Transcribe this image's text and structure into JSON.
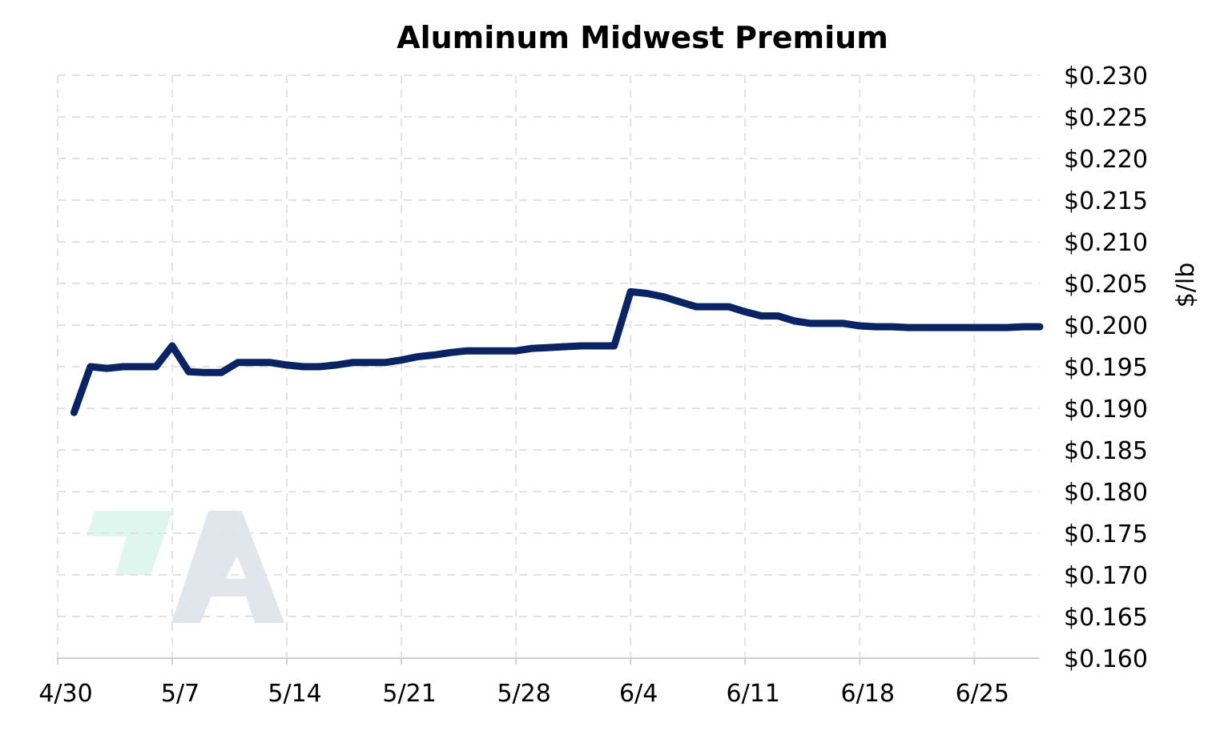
{
  "chart_data": {
    "type": "line",
    "title": "Aluminum Midwest Premium",
    "xlabel": "",
    "ylabel": "$/lb",
    "x_ticks": [
      "4/30",
      "5/7",
      "5/14",
      "5/21",
      "5/28",
      "6/4",
      "6/11",
      "6/18",
      "6/25"
    ],
    "y_ticks": [
      "$0.230",
      "$0.225",
      "$0.220",
      "$0.215",
      "$0.210",
      "$0.205",
      "$0.200",
      "$0.195",
      "$0.190",
      "$0.185",
      "$0.180",
      "$0.175",
      "$0.170",
      "$0.165",
      "$0.160"
    ],
    "ylim": [
      0.16,
      0.23
    ],
    "xlim": [
      "2024-04-30",
      "2024-06-29"
    ],
    "grid": true,
    "legend": "none",
    "line_color": "#0a2463",
    "watermark": "logo-mark",
    "series": [
      {
        "name": "",
        "x": [
          "2024-05-01",
          "2024-05-02",
          "2024-05-03",
          "2024-05-04",
          "2024-05-05",
          "2024-05-06",
          "2024-05-07",
          "2024-05-08",
          "2024-05-09",
          "2024-05-10",
          "2024-05-11",
          "2024-05-12",
          "2024-05-13",
          "2024-05-14",
          "2024-05-15",
          "2024-05-16",
          "2024-05-17",
          "2024-05-18",
          "2024-05-19",
          "2024-05-20",
          "2024-05-21",
          "2024-05-22",
          "2024-05-23",
          "2024-05-24",
          "2024-05-25",
          "2024-05-26",
          "2024-05-27",
          "2024-05-28",
          "2024-05-29",
          "2024-05-30",
          "2024-05-31",
          "2024-06-01",
          "2024-06-02",
          "2024-06-03",
          "2024-06-04",
          "2024-06-05",
          "2024-06-06",
          "2024-06-07",
          "2024-06-08",
          "2024-06-09",
          "2024-06-10",
          "2024-06-11",
          "2024-06-12",
          "2024-06-13",
          "2024-06-14",
          "2024-06-15",
          "2024-06-16",
          "2024-06-17",
          "2024-06-18",
          "2024-06-19",
          "2024-06-20",
          "2024-06-21",
          "2024-06-22",
          "2024-06-23",
          "2024-06-24",
          "2024-06-25",
          "2024-06-26",
          "2024-06-27",
          "2024-06-28",
          "2024-06-29"
        ],
        "values": [
          0.1895,
          0.195,
          0.1948,
          0.195,
          0.195,
          0.195,
          0.1975,
          0.1944,
          0.1943,
          0.1943,
          0.1955,
          0.1955,
          0.1955,
          0.1952,
          0.195,
          0.195,
          0.1952,
          0.1955,
          0.1955,
          0.1955,
          0.1958,
          0.1962,
          0.1964,
          0.1967,
          0.1969,
          0.1969,
          0.1969,
          0.1969,
          0.1972,
          0.1973,
          0.1974,
          0.1975,
          0.1975,
          0.1975,
          0.204,
          0.2038,
          0.2034,
          0.2028,
          0.2022,
          0.2022,
          0.2022,
          0.2016,
          0.2011,
          0.2011,
          0.2005,
          0.2002,
          0.2002,
          0.2002,
          0.1999,
          0.1998,
          0.1998,
          0.1997,
          0.1997,
          0.1997,
          0.1997,
          0.1997,
          0.1997,
          0.1997,
          0.1998,
          0.1998
        ]
      }
    ]
  }
}
